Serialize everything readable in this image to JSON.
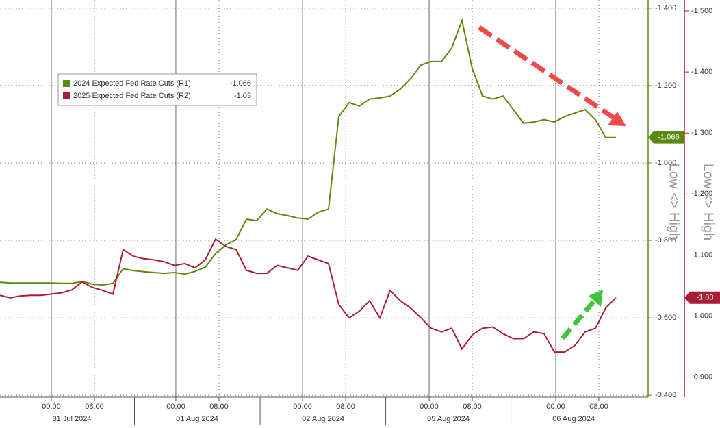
{
  "chart_data": {
    "type": "line",
    "x": [
      0,
      1,
      2,
      3,
      4,
      5,
      6,
      7,
      8,
      9,
      10,
      11,
      12,
      13,
      14,
      15,
      16,
      17,
      18,
      19,
      20,
      21,
      22,
      23,
      24,
      25,
      26,
      27,
      28,
      29,
      30,
      31,
      32,
      33,
      34,
      35,
      36,
      37,
      38,
      39,
      40,
      41,
      42,
      43,
      44,
      45,
      46,
      47,
      48,
      49,
      50,
      51,
      52,
      53,
      54,
      55,
      56,
      57,
      58,
      59,
      60
    ],
    "series": [
      {
        "name": "2024 Expected Fed Rate Cuts (R1)",
        "color": "#5a8a0e",
        "axis": "y",
        "values": [
          -0.692,
          -0.69,
          -0.69,
          -0.69,
          -0.69,
          -0.69,
          -0.689,
          -0.689,
          -0.694,
          -0.687,
          -0.685,
          -0.689,
          -0.727,
          -0.722,
          -0.719,
          -0.717,
          -0.715,
          -0.717,
          -0.713,
          -0.72,
          -0.731,
          -0.766,
          -0.788,
          -0.802,
          -0.855,
          -0.851,
          -0.881,
          -0.869,
          -0.864,
          -0.858,
          -0.855,
          -0.873,
          -0.881,
          -1.12,
          -1.156,
          -1.147,
          -1.165,
          -1.168,
          -1.173,
          -1.191,
          -1.218,
          -1.253,
          -1.262,
          -1.262,
          -1.297,
          -1.368,
          -1.244,
          -1.173,
          -1.165,
          -1.173,
          -1.138,
          -1.103,
          -1.106,
          -1.112,
          -1.106,
          -1.12,
          -1.129,
          -1.138,
          -1.112,
          -1.066,
          -1.066
        ]
      },
      {
        "name": "2025 Expected Fed Rate Cuts (R2)",
        "color": "#a81e32",
        "axis": "y2",
        "values": [
          -1.034,
          -1.03,
          -1.033,
          -1.034,
          -1.034,
          -1.036,
          -1.038,
          -1.043,
          -1.056,
          -1.047,
          -1.042,
          -1.036,
          -1.109,
          -1.098,
          -1.094,
          -1.092,
          -1.089,
          -1.083,
          -1.086,
          -1.079,
          -1.092,
          -1.126,
          -1.114,
          -1.109,
          -1.075,
          -1.07,
          -1.07,
          -1.083,
          -1.079,
          -1.075,
          -1.098,
          -1.092,
          -1.086,
          -1.019,
          -0.997,
          -1.008,
          -1.025,
          -0.997,
          -1.042,
          -1.025,
          -1.013,
          -0.997,
          -0.98,
          -0.974,
          -0.98,
          -0.946,
          -0.969,
          -0.98,
          -0.982,
          -0.971,
          -0.963,
          -0.963,
          -0.974,
          -0.971,
          -0.941,
          -0.941,
          -0.952,
          -0.974,
          -0.98,
          -1.013,
          -1.03
        ]
      }
    ],
    "xlim": [
      0,
      63.13
    ],
    "xticks": [
      {
        "value": 5,
        "label": "00:00"
      },
      {
        "value": 9.2,
        "label": "08:00"
      },
      {
        "value": 17.13,
        "label": "00:00"
      },
      {
        "value": 21.33,
        "label": "08:00"
      },
      {
        "value": 29.47,
        "label": "00:00"
      },
      {
        "value": 33.67,
        "label": "08:00"
      },
      {
        "value": 41.8,
        "label": "00:00"
      },
      {
        "value": 46,
        "label": "08:00"
      },
      {
        "value": 54.13,
        "label": "00:00"
      },
      {
        "value": 58.33,
        "label": "08:00"
      }
    ],
    "date_labels": [
      {
        "value": 7,
        "label": "31 Jul 2024"
      },
      {
        "value": 19.2,
        "label": "01 Aug 2024"
      },
      {
        "value": 31.47,
        "label": "02 Aug 2024"
      },
      {
        "value": 43.67,
        "label": "05 Aug 2024"
      },
      {
        "value": 55.87,
        "label": "06 Aug 2024"
      }
    ],
    "ylim": [
      -0.395,
      -1.421
    ],
    "yticks": [
      {
        "value": -1.4,
        "label": "-1.400"
      },
      {
        "value": -1.2,
        "label": "-1.200"
      },
      {
        "value": -1.0,
        "label": "-1.000"
      },
      {
        "value": -0.8,
        "label": "-0.800"
      },
      {
        "value": -0.6,
        "label": "-0.600"
      },
      {
        "value": -0.4,
        "label": "-0.400"
      }
    ],
    "y2lim": [
      -0.867,
      -1.518
    ],
    "y2ticks": [
      {
        "value": -1.5,
        "label": "-1.500"
      },
      {
        "value": -1.4,
        "label": "-1.400"
      },
      {
        "value": -1.3,
        "label": "-1.300"
      },
      {
        "value": -1.2,
        "label": "-1.200"
      },
      {
        "value": -1.1,
        "label": "-1.100"
      },
      {
        "value": -1.0,
        "label": "-1.000"
      },
      {
        "value": -0.9,
        "label": "-0.900"
      }
    ],
    "y_label": "Low <> High",
    "y2_label": "Low <> High",
    "grid": true,
    "legend": "upper left"
  }
}
